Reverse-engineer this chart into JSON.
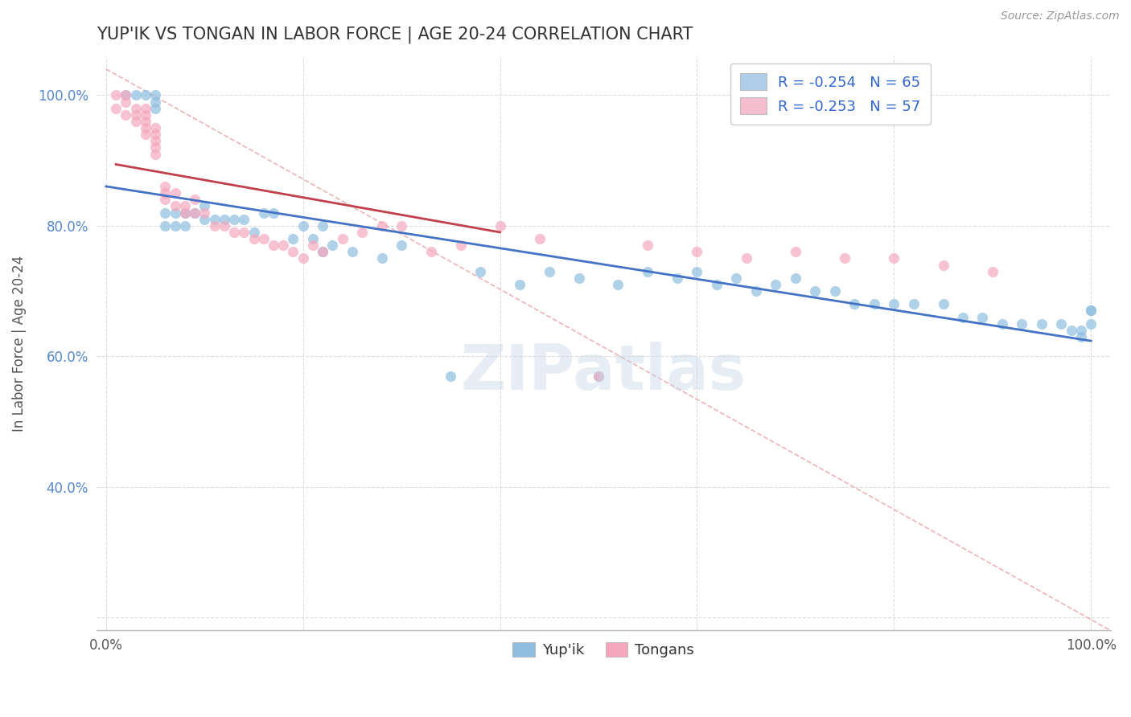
{
  "title": "YUP'IK VS TONGAN IN LABOR FORCE | AGE 20-24 CORRELATION CHART",
  "source_text": "Source: ZipAtlas.com",
  "ylabel": "In Labor Force | Age 20-24",
  "watermark": "ZIPatlas",
  "legend_entries": [
    {
      "label": "R = -0.254   N = 65",
      "color": "#aecde8"
    },
    {
      "label": "R = -0.253   N = 57",
      "color": "#f4bece"
    }
  ],
  "legend_label_yupik": "Yup'ik",
  "legend_label_tongan": "Tongans",
  "xlim": [
    -0.01,
    1.02
  ],
  "ylim": [
    0.18,
    1.06
  ],
  "xticklabels": [
    "0.0%",
    "",
    "",
    "",
    "",
    "100.0%"
  ],
  "xticks": [
    0.0,
    0.2,
    0.4,
    0.6,
    0.8,
    1.0
  ],
  "yticklabels": [
    "",
    "40.0%",
    "60.0%",
    "80.0%",
    "100.0%"
  ],
  "yticks": [
    0.2,
    0.4,
    0.6,
    0.8,
    1.0
  ],
  "scatter_color_yupik": "#8fbfe0",
  "scatter_color_tongan": "#f4a8be",
  "line_color_yupik": "#4472c4",
  "line_color_tongan": "#c0404c",
  "diag_line_color": "#e8b0b8",
  "title_color": "#333333",
  "axis_label_color": "#555555",
  "tick_label_color_y": "#5588cc",
  "tick_label_color_x": "#555555",
  "grid_color": "#dddddd",
  "background_color": "#ffffff",
  "yupik_x": [
    0.02,
    0.03,
    0.04,
    0.05,
    0.05,
    0.05,
    0.06,
    0.06,
    0.07,
    0.07,
    0.08,
    0.08,
    0.09,
    0.1,
    0.1,
    0.11,
    0.12,
    0.13,
    0.14,
    0.15,
    0.16,
    0.17,
    0.19,
    0.2,
    0.21,
    0.22,
    0.22,
    0.23,
    0.25,
    0.28,
    0.3,
    0.35,
    0.38,
    0.42,
    0.45,
    0.48,
    0.5,
    0.52,
    0.55,
    0.58,
    0.6,
    0.62,
    0.64,
    0.66,
    0.68,
    0.7,
    0.72,
    0.74,
    0.76,
    0.78,
    0.8,
    0.82,
    0.85,
    0.87,
    0.89,
    0.91,
    0.93,
    0.95,
    0.97,
    0.98,
    0.99,
    0.99,
    1.0,
    1.0,
    1.0
  ],
  "yupik_y": [
    1.0,
    1.0,
    1.0,
    1.0,
    0.99,
    0.98,
    0.82,
    0.8,
    0.82,
    0.8,
    0.82,
    0.8,
    0.82,
    0.83,
    0.81,
    0.81,
    0.81,
    0.81,
    0.81,
    0.79,
    0.82,
    0.82,
    0.78,
    0.8,
    0.78,
    0.8,
    0.76,
    0.77,
    0.76,
    0.75,
    0.77,
    0.57,
    0.73,
    0.71,
    0.73,
    0.72,
    0.57,
    0.71,
    0.73,
    0.72,
    0.73,
    0.71,
    0.72,
    0.7,
    0.71,
    0.72,
    0.7,
    0.7,
    0.68,
    0.68,
    0.68,
    0.68,
    0.68,
    0.66,
    0.66,
    0.65,
    0.65,
    0.65,
    0.65,
    0.64,
    0.64,
    0.63,
    0.67,
    0.65,
    0.67
  ],
  "tongan_x": [
    0.01,
    0.01,
    0.02,
    0.02,
    0.02,
    0.03,
    0.03,
    0.03,
    0.04,
    0.04,
    0.04,
    0.04,
    0.04,
    0.05,
    0.05,
    0.05,
    0.05,
    0.05,
    0.06,
    0.06,
    0.06,
    0.07,
    0.07,
    0.08,
    0.08,
    0.09,
    0.09,
    0.1,
    0.11,
    0.12,
    0.13,
    0.14,
    0.15,
    0.16,
    0.17,
    0.18,
    0.19,
    0.2,
    0.21,
    0.22,
    0.24,
    0.26,
    0.28,
    0.3,
    0.33,
    0.36,
    0.4,
    0.44,
    0.5,
    0.55,
    0.6,
    0.65,
    0.7,
    0.75,
    0.8,
    0.85,
    0.9
  ],
  "tongan_y": [
    1.0,
    0.98,
    1.0,
    0.99,
    0.97,
    0.98,
    0.97,
    0.96,
    0.98,
    0.97,
    0.96,
    0.95,
    0.94,
    0.95,
    0.94,
    0.93,
    0.92,
    0.91,
    0.86,
    0.85,
    0.84,
    0.85,
    0.83,
    0.83,
    0.82,
    0.84,
    0.82,
    0.82,
    0.8,
    0.8,
    0.79,
    0.79,
    0.78,
    0.78,
    0.77,
    0.77,
    0.76,
    0.75,
    0.77,
    0.76,
    0.78,
    0.79,
    0.8,
    0.8,
    0.76,
    0.77,
    0.8,
    0.78,
    0.57,
    0.77,
    0.76,
    0.75,
    0.76,
    0.75,
    0.75,
    0.74,
    0.73
  ]
}
